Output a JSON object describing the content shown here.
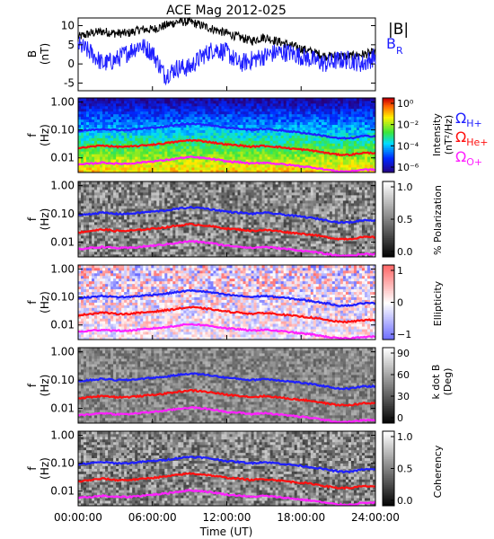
{
  "title": "ACE Mag 2012-025",
  "xaxis": {
    "label": "Time (UT)",
    "tick_labels": [
      "00:00:00",
      "06:00:00",
      "12:00:00",
      "18:00:00",
      "24:00:00"
    ],
    "tick_hours": [
      0,
      6,
      12,
      18,
      24
    ],
    "range_hours": [
      0,
      24
    ]
  },
  "colors": {
    "h_plus": "#1f1fff",
    "he_plus": "#ff1010",
    "o_plus": "#ff20ff",
    "b_total": "#000000",
    "b_r": "#1f1fff"
  },
  "legend": {
    "b_total": "|B|",
    "b_r_main": "B",
    "b_r_sub": "R",
    "omega": "Ω",
    "h_sub": "H+",
    "he_sub": "He+",
    "o_sub": "O+"
  },
  "panels": {
    "b": {
      "ylabel_top": "B",
      "ylabel_bottom": "(nT)",
      "yticks": [
        "10",
        "5",
        "0",
        "-5"
      ],
      "ylim": [
        -7,
        12
      ]
    },
    "f_axis": {
      "ylabel_top": "f",
      "ylabel_bottom": "(Hz)",
      "yticks": [
        "1.00",
        "0.10",
        "0.01"
      ],
      "ylim": [
        0.003,
        1.4
      ],
      "scale": "log"
    },
    "intensity": {
      "cb_label_1": "Intensity",
      "cb_label_2": "(nT²/Hz)",
      "cb_ticks": [
        "10⁰",
        "10⁻²",
        "10⁻⁴",
        "10⁻⁶"
      ]
    },
    "polarization": {
      "cb_label": "% Polarization",
      "cb_ticks": [
        "1.0",
        "0.5",
        "0.0"
      ]
    },
    "ellipticity": {
      "cb_label": "Ellipticity",
      "cb_ticks": [
        "1",
        "0",
        "−1"
      ]
    },
    "kdotb": {
      "cb_label_1": "k dot B",
      "cb_label_2": "(Deg)",
      "cb_ticks": [
        "90",
        "60",
        "30",
        "0"
      ]
    },
    "coherency": {
      "cb_label": "Coherency",
      "cb_ticks": [
        "1.0",
        "0.5",
        "0.0"
      ]
    }
  },
  "chart_data": {
    "type": "line",
    "title": "ACE Mag 2012-025",
    "xlabel": "Time (UT)",
    "x_hours": [
      0,
      1,
      2,
      3,
      4,
      5,
      6,
      7,
      8,
      9,
      10,
      11,
      12,
      13,
      14,
      15,
      16,
      17,
      18,
      19,
      20,
      21,
      22,
      23,
      24
    ],
    "series": [
      {
        "name": "|B|",
        "panel": "b",
        "values": [
          7,
          8,
          8.5,
          8,
          8,
          9,
          9,
          10,
          11,
          11,
          10,
          9,
          8,
          7,
          6,
          7,
          6,
          5,
          4,
          3,
          2,
          2,
          2,
          2.5,
          3
        ]
      },
      {
        "name": "BR",
        "panel": "b",
        "values": [
          5,
          3,
          0,
          1,
          3,
          5,
          3,
          -3,
          -1,
          -1,
          2,
          4,
          3,
          0,
          1,
          2,
          3,
          3,
          2,
          1,
          0,
          1,
          1,
          0,
          2
        ]
      },
      {
        "name": "ΩH+",
        "panel": "f",
        "values": [
          0.09,
          0.1,
          0.11,
          0.1,
          0.1,
          0.11,
          0.12,
          0.13,
          0.15,
          0.17,
          0.16,
          0.14,
          0.12,
          0.11,
          0.1,
          0.11,
          0.1,
          0.09,
          0.08,
          0.07,
          0.06,
          0.05,
          0.05,
          0.06,
          0.06
        ]
      },
      {
        "name": "ΩHe+",
        "panel": "f",
        "values": [
          0.022,
          0.025,
          0.028,
          0.025,
          0.025,
          0.027,
          0.03,
          0.033,
          0.038,
          0.043,
          0.04,
          0.035,
          0.03,
          0.028,
          0.025,
          0.027,
          0.025,
          0.022,
          0.02,
          0.018,
          0.015,
          0.013,
          0.013,
          0.015,
          0.015
        ]
      },
      {
        "name": "ΩO+",
        "panel": "f",
        "values": [
          0.0056,
          0.0062,
          0.0068,
          0.0062,
          0.0062,
          0.0068,
          0.0075,
          0.0082,
          0.0095,
          0.0107,
          0.01,
          0.0088,
          0.0075,
          0.007,
          0.0062,
          0.0068,
          0.0062,
          0.0056,
          0.005,
          0.0045,
          0.0038,
          0.0033,
          0.0033,
          0.0038,
          0.0038
        ]
      }
    ]
  }
}
